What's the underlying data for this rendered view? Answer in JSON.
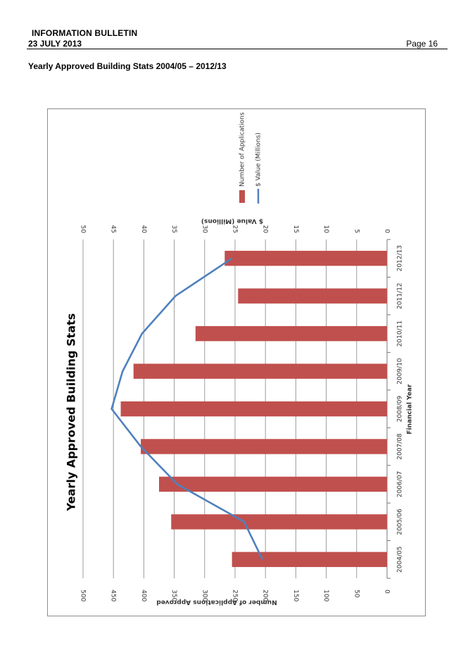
{
  "header": {
    "title": "INFORMATION BULLETIN",
    "date": "23 JULY 2013",
    "page": "Page 16"
  },
  "section_heading": "Yearly Approved Building Stats 2004/05 – 2012/13",
  "colors": {
    "bar": "#c0504d",
    "line": "#4f81bd",
    "grid": "#9c9c9c"
  },
  "chart_data": {
    "type": "bar",
    "orientation": "rotated 90° clockwise on page",
    "title": "Yearly Approved Building Stats",
    "xlabel": "Financial Year",
    "ylabel": "Number of Applications  Approved",
    "y2label": "$ Value (Millions)",
    "categories": [
      "2004/05",
      "2005/06",
      "2006/07",
      "2007/08",
      "2008/09",
      "2009/10",
      "2010/11",
      "2011/12",
      "2012/13"
    ],
    "ylim": [
      0,
      500
    ],
    "y2lim": [
      0,
      50
    ],
    "yticks": [
      "0",
      "50",
      "100",
      "150",
      "200",
      "250",
      "300",
      "350",
      "400",
      "450",
      "500"
    ],
    "y2ticks": [
      "0",
      "5",
      "10",
      "15",
      "20",
      "25",
      "30",
      "35",
      "40",
      "45",
      "50"
    ],
    "grid": true,
    "legend": "top",
    "series": [
      {
        "name": "Number of Applications",
        "type": "bar",
        "axis": "primary",
        "values": [
          255,
          355,
          375,
          405,
          438,
          417,
          315,
          245,
          267
        ]
      },
      {
        "name": "$ Value (Millions)",
        "type": "line",
        "axis": "secondary",
        "values": [
          20.5,
          23.5,
          34.5,
          40.5,
          45.3,
          43.5,
          40.3,
          34.8,
          25.5
        ]
      }
    ]
  }
}
